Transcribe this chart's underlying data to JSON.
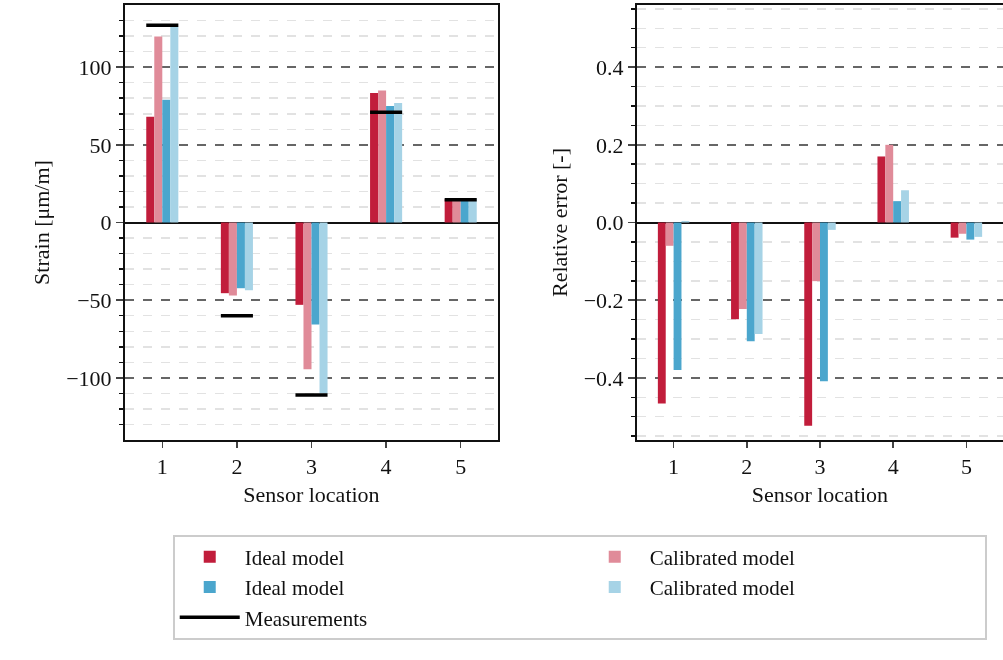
{
  "chart_data": [
    {
      "type": "bar",
      "xlabel": "Sensor location",
      "ylabel": "Strain [μm/m]",
      "x": [
        1,
        2,
        3,
        4,
        5
      ],
      "xlim": [
        0.5,
        5.5
      ],
      "xticks": [
        1,
        2,
        3,
        4,
        5
      ],
      "series": [
        {
          "name": "Ideal model",
          "color": "#c11d3b",
          "values": [
            68,
            -45.5,
            -53,
            83.4,
            15
          ]
        },
        {
          "name": "Calibrated model",
          "color": "#e08b99",
          "values": [
            119.8,
            -47,
            -94.5,
            85,
            15
          ]
        },
        {
          "name": "Ideal model",
          "color": "#4ba6cd",
          "values": [
            79,
            -42.3,
            -65.7,
            75,
            15
          ]
        },
        {
          "name": "Calibrated model",
          "color": "#a6d3e6",
          "values": [
            126,
            -43.6,
            -110,
            77,
            15
          ]
        },
        {
          "name": "Measurements",
          "type": "line",
          "color": "#000000",
          "x": [
            0.785,
            1.215,
            null,
            1.785,
            2.215,
            null,
            2.785,
            3.215,
            null,
            3.785,
            4.215,
            null,
            4.785,
            5.215
          ],
          "values": [
            127,
            127,
            null,
            -60,
            -60,
            null,
            -111,
            -111,
            null,
            71,
            71,
            null,
            14.7,
            14.7
          ]
        }
      ],
      "ylim": [
        -140,
        140
      ],
      "yticks": [
        {
          "value": -130,
          "label": null
        },
        {
          "value": -120,
          "label": null
        },
        {
          "value": -110,
          "label": null
        },
        {
          "value": -100,
          "label": "−100"
        },
        {
          "value": -90,
          "label": null
        },
        {
          "value": -80,
          "label": null
        },
        {
          "value": -70,
          "label": null
        },
        {
          "value": -60,
          "label": null
        },
        {
          "value": -50,
          "label": "−50"
        },
        {
          "value": -40,
          "label": null
        },
        {
          "value": -30,
          "label": null
        },
        {
          "value": -20,
          "label": null
        },
        {
          "value": -10,
          "label": null
        },
        0,
        {
          "value": 10,
          "label": null
        },
        {
          "value": 20,
          "label": null
        },
        {
          "value": 30,
          "label": null
        },
        {
          "value": 40,
          "label": null
        },
        50,
        {
          "value": 60,
          "label": null
        },
        {
          "value": 70,
          "label": null
        },
        {
          "value": 80,
          "label": null
        },
        {
          "value": 90,
          "label": null
        },
        100,
        {
          "value": 110,
          "label": null
        },
        {
          "value": 120,
          "label": null
        },
        {
          "value": 130,
          "label": null
        }
      ],
      "grid": "y",
      "legend": "bottom"
    },
    {
      "type": "bar",
      "xlabel": "Sensor location",
      "ylabel": "Relative error [-]",
      "x": [
        1,
        2,
        3,
        4,
        5
      ],
      "xlim": [
        0.5,
        5.5
      ],
      "xticks": [
        1,
        2,
        3,
        4,
        5
      ],
      "series": [
        {
          "color": "#c11d3b",
          "values": [
            -0.466,
            -0.249,
            -0.523,
            0.17,
            -0.039
          ]
        },
        {
          "color": "#e08b99",
          "values": [
            -0.06,
            -0.223,
            -0.151,
            0.2,
            -0.029
          ]
        },
        {
          "color": "#4ba6cd",
          "values": [
            -0.38,
            -0.306,
            -0.409,
            0.055,
            -0.044
          ]
        },
        {
          "color": "#a6d3e6",
          "values": [
            0.004,
            -0.287,
            -0.019,
            0.083,
            -0.037
          ]
        }
      ],
      "ylim": [
        -0.56,
        0.56
      ],
      "yticks": [
        {
          "value": -0.55,
          "label": null
        },
        {
          "value": -0.5,
          "label": null
        },
        {
          "value": -0.45,
          "label": null
        },
        {
          "value": -0.4,
          "label": "−0.4"
        },
        {
          "value": -0.35,
          "label": null
        },
        {
          "value": -0.3,
          "label": null
        },
        {
          "value": -0.25,
          "label": null
        },
        {
          "value": -0.2,
          "label": "−0.2"
        },
        {
          "value": -0.15,
          "label": null
        },
        {
          "value": -0.1,
          "label": null
        },
        {
          "value": -0.05,
          "label": null
        },
        {
          "value": 0,
          "label": "0.0"
        },
        {
          "value": 0.05,
          "label": null
        },
        {
          "value": 0.1,
          "label": null
        },
        {
          "value": 0.15,
          "label": null
        },
        0.2,
        {
          "value": 0.25,
          "label": null
        },
        {
          "value": 0.3,
          "label": null
        },
        {
          "value": 0.35,
          "label": null
        },
        0.4,
        {
          "value": 0.45,
          "label": null
        },
        {
          "value": 0.5,
          "label": null
        },
        {
          "value": 0.55,
          "label": null
        }
      ],
      "grid": "y"
    }
  ]
}
